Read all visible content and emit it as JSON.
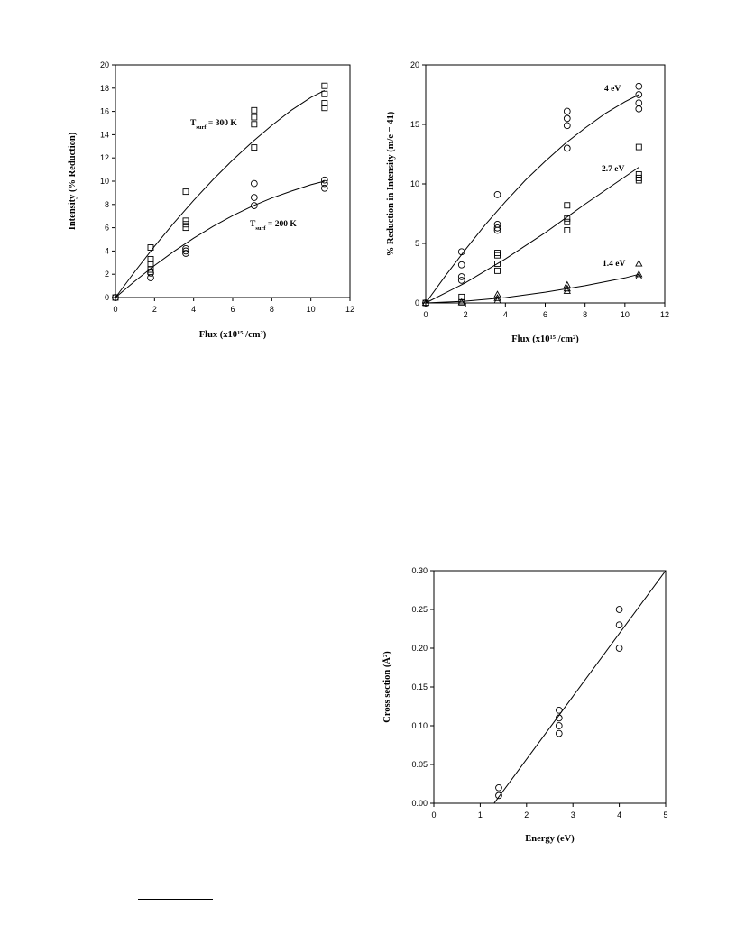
{
  "chart_data": [
    {
      "type": "scatter",
      "title": "",
      "xlabel": "Flux (x10",
      "xlabel_sup": "15",
      "xlabel_after": " /cm",
      "xlabel_sup2": "2",
      "xlabel_end": ")",
      "ylabel": "Intensity (% Reduction)",
      "xlim": [
        0,
        12
      ],
      "ylim": [
        0,
        20
      ],
      "xticks": [
        0,
        2,
        4,
        6,
        8,
        10,
        12
      ],
      "yticks": [
        0,
        2,
        4,
        6,
        8,
        10,
        12,
        14,
        16,
        18,
        20
      ],
      "grid": false,
      "series": [
        {
          "marker": "square",
          "annotation": {
            "T": "T",
            "sub": "surf",
            "rest": " = 300 K"
          },
          "points": [
            [
              0,
              0
            ],
            [
              1.8,
              4.3
            ],
            [
              1.8,
              3.3
            ],
            [
              1.8,
              2.9
            ],
            [
              1.8,
              2.4
            ],
            [
              1.8,
              2.2
            ],
            [
              3.6,
              9.1
            ],
            [
              3.6,
              6.6
            ],
            [
              3.6,
              6.3
            ],
            [
              3.6,
              6.0
            ],
            [
              7.1,
              16.1
            ],
            [
              7.1,
              15.5
            ],
            [
              7.1,
              14.9
            ],
            [
              7.1,
              12.9
            ],
            [
              10.7,
              18.2
            ],
            [
              10.7,
              17.5
            ],
            [
              10.7,
              16.7
            ],
            [
              10.7,
              16.3
            ]
          ],
          "fit": [
            [
              0,
              0
            ],
            [
              1,
              2.25
            ],
            [
              2,
              4.4
            ],
            [
              3,
              6.43
            ],
            [
              4,
              8.35
            ],
            [
              5,
              10.15
            ],
            [
              6,
              11.82
            ],
            [
              7,
              13.37
            ],
            [
              8,
              14.8
            ],
            [
              9,
              16.1
            ],
            [
              10,
              17.2
            ],
            [
              10.7,
              17.8
            ]
          ]
        },
        {
          "marker": "circle",
          "annotation": {
            "T": "T",
            "sub": "surf",
            "rest": " = 200 K"
          },
          "points": [
            [
              0,
              0
            ],
            [
              1.8,
              2.1
            ],
            [
              1.8,
              1.7
            ],
            [
              3.6,
              4.2
            ],
            [
              3.6,
              4.0
            ],
            [
              3.6,
              3.8
            ],
            [
              7.1,
              9.8
            ],
            [
              7.1,
              8.6
            ],
            [
              7.1,
              7.9
            ],
            [
              10.7,
              10.1
            ],
            [
              10.7,
              9.8
            ],
            [
              10.7,
              9.4
            ]
          ],
          "fit": [
            [
              0,
              0
            ],
            [
              1,
              1.42
            ],
            [
              2,
              2.75
            ],
            [
              3,
              3.98
            ],
            [
              4,
              5.1
            ],
            [
              5,
              6.12
            ],
            [
              6,
              7.04
            ],
            [
              7,
              7.85
            ],
            [
              8,
              8.55
            ],
            [
              9,
              9.15
            ],
            [
              10,
              9.7
            ],
            [
              10.7,
              10.0
            ]
          ]
        }
      ]
    },
    {
      "type": "scatter",
      "title": "",
      "xlabel": "Flux (x10",
      "xlabel_sup": "15",
      "xlabel_after": " /cm",
      "xlabel_sup2": "2",
      "xlabel_end": ")",
      "ylabel": "% Reduction in Intensity (m/e = 41)",
      "xlim": [
        0,
        12
      ],
      "ylim": [
        0,
        20
      ],
      "xticks": [
        0,
        2,
        4,
        6,
        8,
        10,
        12
      ],
      "yticks": [
        0,
        5,
        10,
        15,
        20
      ],
      "grid": false,
      "series": [
        {
          "marker": "circle",
          "label": "4 eV",
          "points": [
            [
              0,
              0
            ],
            [
              1.8,
              4.3
            ],
            [
              1.8,
              3.2
            ],
            [
              1.8,
              2.2
            ],
            [
              1.8,
              1.9
            ],
            [
              3.6,
              9.1
            ],
            [
              3.6,
              6.6
            ],
            [
              3.6,
              6.3
            ],
            [
              3.6,
              6.1
            ],
            [
              7.1,
              16.1
            ],
            [
              7.1,
              15.5
            ],
            [
              7.1,
              14.9
            ],
            [
              7.1,
              13.0
            ],
            [
              10.7,
              18.2
            ],
            [
              10.7,
              17.5
            ],
            [
              10.7,
              16.8
            ],
            [
              10.7,
              16.3
            ]
          ],
          "fit": [
            [
              0,
              0
            ],
            [
              1,
              2.3
            ],
            [
              2,
              4.5
            ],
            [
              3,
              6.6
            ],
            [
              4,
              8.5
            ],
            [
              5,
              10.3
            ],
            [
              6,
              11.9
            ],
            [
              7,
              13.4
            ],
            [
              8,
              14.7
            ],
            [
              9,
              15.9
            ],
            [
              10,
              16.9
            ],
            [
              10.7,
              17.5
            ]
          ]
        },
        {
          "marker": "square",
          "label": "2.7 eV",
          "points": [
            [
              0,
              0
            ],
            [
              1.8,
              0.5
            ],
            [
              1.8,
              0.05
            ],
            [
              3.6,
              4.2
            ],
            [
              3.6,
              4.0
            ],
            [
              3.6,
              3.3
            ],
            [
              3.6,
              2.7
            ],
            [
              7.1,
              8.2
            ],
            [
              7.1,
              7.1
            ],
            [
              7.1,
              6.8
            ],
            [
              7.1,
              6.1
            ],
            [
              10.7,
              13.1
            ],
            [
              10.7,
              10.8
            ],
            [
              10.7,
              10.5
            ],
            [
              10.7,
              10.3
            ]
          ],
          "fit": [
            [
              0,
              0
            ],
            [
              2,
              1.7
            ],
            [
              4,
              3.7
            ],
            [
              6,
              5.9
            ],
            [
              8,
              8.3
            ],
            [
              10,
              10.6
            ],
            [
              10.7,
              11.4
            ]
          ]
        },
        {
          "marker": "triangle",
          "label": "1.4 eV",
          "points": [
            [
              0,
              0
            ],
            [
              1.8,
              0.05
            ],
            [
              3.6,
              0.7
            ],
            [
              3.6,
              0.4
            ],
            [
              3.6,
              0.2
            ],
            [
              7.1,
              1.5
            ],
            [
              7.1,
              1.2
            ],
            [
              7.1,
              1.0
            ],
            [
              10.7,
              3.3
            ],
            [
              10.7,
              2.4
            ],
            [
              10.7,
              2.2
            ]
          ],
          "fit": [
            [
              0,
              0
            ],
            [
              2,
              0.15
            ],
            [
              4,
              0.45
            ],
            [
              6,
              0.9
            ],
            [
              8,
              1.45
            ],
            [
              10,
              2.1
            ],
            [
              10.7,
              2.4
            ]
          ]
        }
      ]
    },
    {
      "type": "scatter",
      "title": "",
      "xlabel": "Energy (eV)",
      "ylabel": "Cross section (Å",
      "ylabel_sup": "2",
      "ylabel_end": ")",
      "xlim": [
        0,
        5
      ],
      "ylim": [
        0,
        0.3
      ],
      "xticks": [
        0,
        1,
        2,
        3,
        4,
        5
      ],
      "yticks": [
        0.0,
        0.05,
        0.1,
        0.15,
        0.2,
        0.25,
        0.3
      ],
      "ytick_labels": [
        "0.00",
        "0.05",
        "0.10",
        "0.15",
        "0.20",
        "0.25",
        "0.30"
      ],
      "grid": false,
      "series": [
        {
          "marker": "circle",
          "points": [
            [
              1.4,
              0.02
            ],
            [
              1.4,
              0.01
            ],
            [
              2.7,
              0.12
            ],
            [
              2.7,
              0.11
            ],
            [
              2.7,
              0.1
            ],
            [
              2.7,
              0.09
            ],
            [
              4.0,
              0.25
            ],
            [
              4.0,
              0.23
            ],
            [
              4.0,
              0.2
            ]
          ],
          "fit": [
            [
              1.3,
              0.0
            ],
            [
              5.0,
              0.3
            ]
          ]
        }
      ]
    }
  ]
}
